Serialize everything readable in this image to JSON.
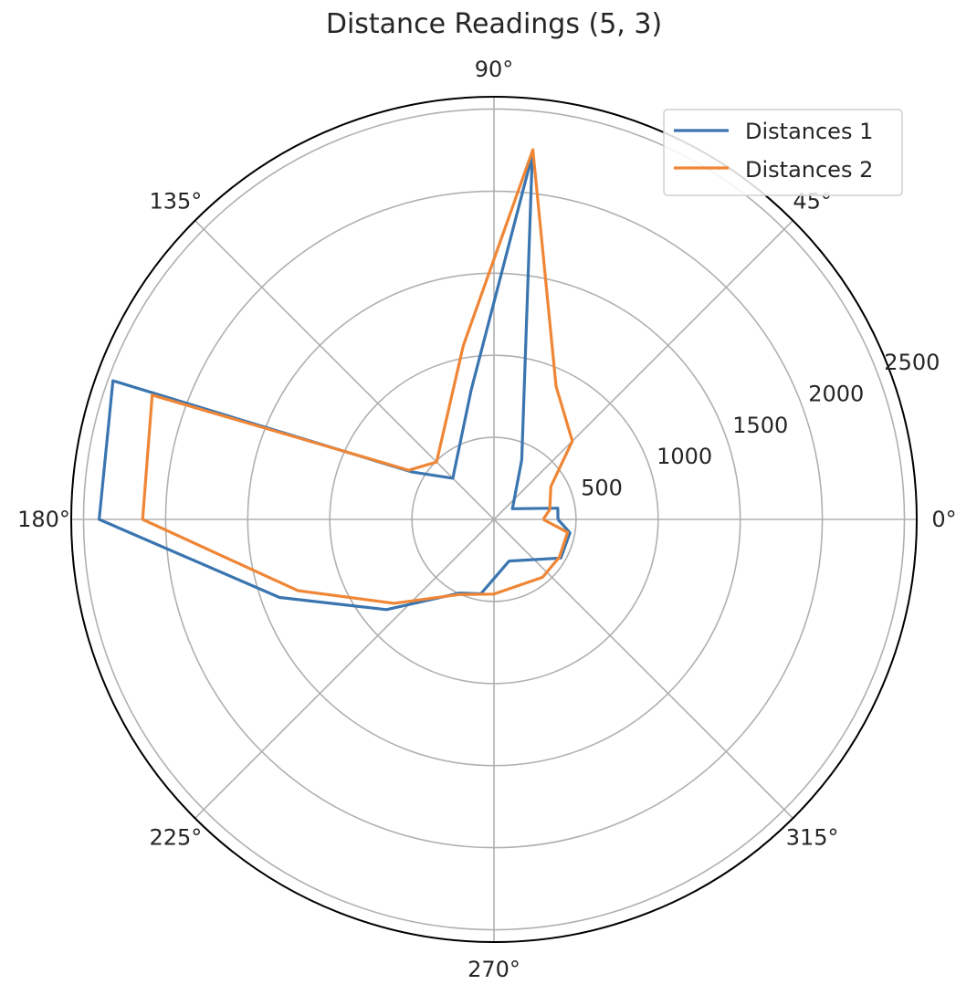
{
  "chart_data": {
    "type": "line",
    "projection": "polar",
    "title": "Distance Readings (5, 3)",
    "theta_unit": "degrees",
    "theta_tick_labels": [
      "0°",
      "45°",
      "90°",
      "135°",
      "180°",
      "225°",
      "270°",
      "315°"
    ],
    "theta_ticks": [
      0,
      45,
      90,
      135,
      180,
      225,
      270,
      315
    ],
    "radial_ticks": [
      500,
      1000,
      1500,
      2000,
      2500
    ],
    "radial_tick_labels": [
      "500",
      "1000",
      "1500",
      "2000",
      "2500"
    ],
    "rlim": [
      0,
      2575
    ],
    "grid": true,
    "legend_position": "top-right",
    "series": [
      {
        "name": "Distances 1",
        "color": "#3a75b0",
        "points": [
          {
            "theta": 0,
            "r": 390
          },
          {
            "theta": 10,
            "r": 395
          },
          {
            "theta": 30,
            "r": 130
          },
          {
            "theta": 65,
            "r": 400
          },
          {
            "theta": 84,
            "r": 2235
          },
          {
            "theta": 100,
            "r": 800
          },
          {
            "theta": 135,
            "r": 355
          },
          {
            "theta": 150,
            "r": 580
          },
          {
            "theta": 160,
            "r": 2470
          },
          {
            "theta": 180,
            "r": 2405
          },
          {
            "theta": 200,
            "r": 1390
          },
          {
            "theta": 220,
            "r": 855
          },
          {
            "theta": 245,
            "r": 495
          },
          {
            "theta": 260,
            "r": 460
          },
          {
            "theta": 290,
            "r": 270
          },
          {
            "theta": 330,
            "r": 470
          },
          {
            "theta": 350,
            "r": 470
          },
          {
            "theta": 360,
            "r": 390
          }
        ]
      },
      {
        "name": "Distances 2",
        "color": "#ef8636",
        "points": [
          {
            "theta": 0,
            "r": 300
          },
          {
            "theta": 10,
            "r": 345
          },
          {
            "theta": 30,
            "r": 400
          },
          {
            "theta": 45,
            "r": 675
          },
          {
            "theta": 65,
            "r": 895
          },
          {
            "theta": 84,
            "r": 2265
          },
          {
            "theta": 100,
            "r": 1075
          },
          {
            "theta": 135,
            "r": 495
          },
          {
            "theta": 150,
            "r": 600
          },
          {
            "theta": 160,
            "r": 2215
          },
          {
            "theta": 180,
            "r": 2140
          },
          {
            "theta": 200,
            "r": 1270
          },
          {
            "theta": 220,
            "r": 795
          },
          {
            "theta": 245,
            "r": 505
          },
          {
            "theta": 270,
            "r": 455
          },
          {
            "theta": 310,
            "r": 460
          },
          {
            "theta": 330,
            "r": 460
          },
          {
            "theta": 350,
            "r": 455
          },
          {
            "theta": 360,
            "r": 300
          }
        ]
      }
    ]
  }
}
